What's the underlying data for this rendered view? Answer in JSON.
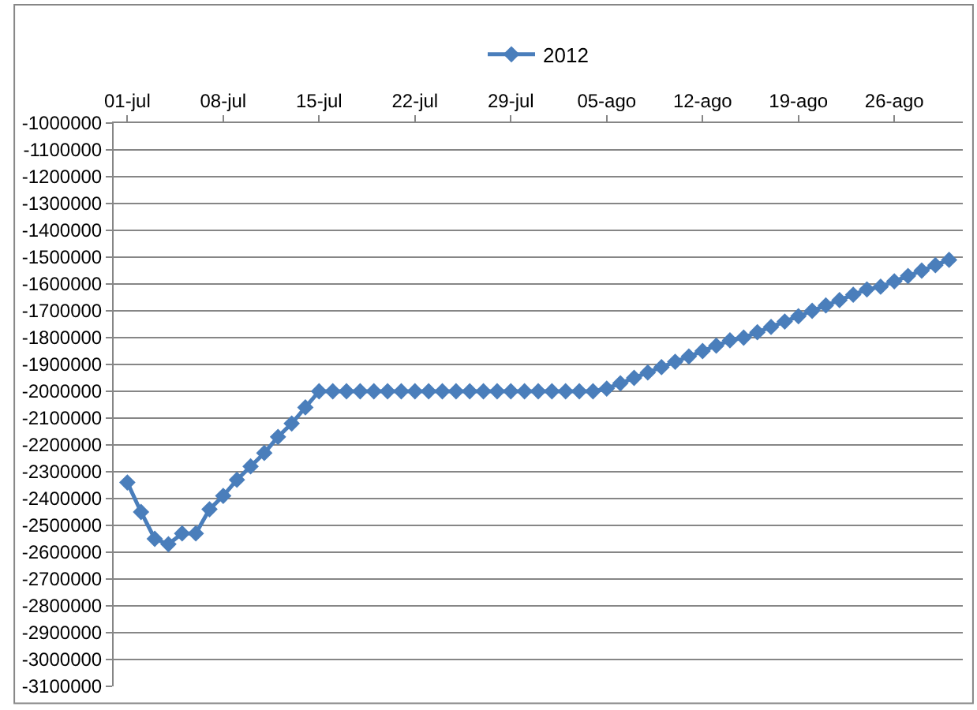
{
  "chart_data": {
    "type": "line",
    "legend": "top",
    "grid": "y",
    "marker": "diamond",
    "line_style": "solid",
    "x": [
      "--07-01",
      "--07-02",
      "--07-03",
      "--07-04",
      "--07-05",
      "--07-06",
      "--07-07",
      "--07-08",
      "--07-09",
      "--07-10",
      "--07-11",
      "--07-12",
      "--07-13",
      "--07-14",
      "--07-15",
      "--07-16",
      "--07-17",
      "--07-18",
      "--07-19",
      "--07-20",
      "--07-21",
      "--07-22",
      "--07-23",
      "--07-24",
      "--07-25",
      "--07-26",
      "--07-27",
      "--07-28",
      "--07-29",
      "--07-30",
      "--07-31",
      "--08-01",
      "--08-02",
      "--08-03",
      "--08-04",
      "--08-05",
      "--08-06",
      "--08-07",
      "--08-08",
      "--08-09",
      "--08-10",
      "--08-11",
      "--08-12",
      "--08-13",
      "--08-14",
      "--08-15",
      "--08-16",
      "--08-17",
      "--08-18",
      "--08-19",
      "--08-20",
      "--08-21",
      "--08-22",
      "--08-23",
      "--08-24",
      "--08-25",
      "--08-26",
      "--08-27",
      "--08-28",
      "--08-29",
      "--08-30"
    ],
    "series": [
      {
        "name": "2012",
        "color": "#4a7ebb",
        "values": [
          -2340000,
          -2450000,
          -2550000,
          -2570000,
          -2530000,
          -2530000,
          -2440000,
          -2390000,
          -2330000,
          -2280000,
          -2230000,
          -2170000,
          -2120000,
          -2060000,
          -2000000,
          -2000000,
          -2000000,
          -2000000,
          -2000000,
          -2000000,
          -2000000,
          -2000000,
          -2000000,
          -2000000,
          -2000000,
          -2000000,
          -2000000,
          -2000000,
          -2000000,
          -2000000,
          -2000000,
          -2000000,
          -2000000,
          -2000000,
          -2000000,
          -1990000,
          -1970000,
          -1950000,
          -1930000,
          -1910000,
          -1890000,
          -1870000,
          -1850000,
          -1830000,
          -1810000,
          -1800000,
          -1780000,
          -1760000,
          -1740000,
          -1720000,
          -1700000,
          -1680000,
          -1660000,
          -1640000,
          -1620000,
          -1610000,
          -1590000,
          -1570000,
          -1550000,
          -1530000,
          -1510000
        ]
      }
    ],
    "xlim": [
      "--06-30",
      "--08-31"
    ],
    "xticks": [
      {
        "value": "--07-01",
        "label": "01-jul"
      },
      {
        "value": "--07-08",
        "label": "08-jul"
      },
      {
        "value": "--07-15",
        "label": "15-jul"
      },
      {
        "value": "--07-22",
        "label": "22-jul"
      },
      {
        "value": "--07-29",
        "label": "29-jul"
      },
      {
        "value": "--08-05",
        "label": "05-ago"
      },
      {
        "value": "--08-12",
        "label": "12-ago"
      },
      {
        "value": "--08-19",
        "label": "19-ago"
      },
      {
        "value": "--08-26",
        "label": "26-ago"
      }
    ],
    "ylim": [
      -3100000,
      -1000000
    ],
    "yticks": [
      -3100000,
      -3000000,
      -2900000,
      -2800000,
      -2700000,
      -2600000,
      -2500000,
      -2400000,
      -2300000,
      -2200000,
      -2100000,
      -2000000,
      -1900000,
      -1800000,
      -1700000,
      -1600000,
      -1500000,
      -1400000,
      -1300000,
      -1200000,
      -1100000,
      -1000000
    ]
  }
}
